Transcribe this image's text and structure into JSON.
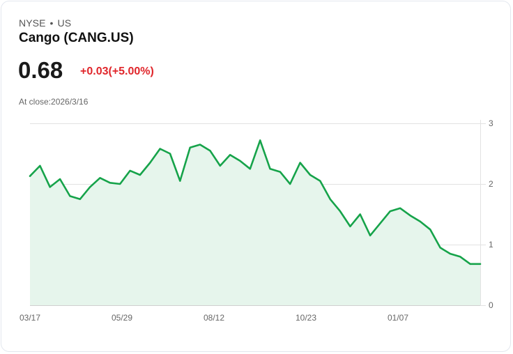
{
  "header": {
    "exchange": "NYSE",
    "separator": "•",
    "region": "US",
    "name": "Cango (CANG.US)",
    "price": "0.68",
    "change": "+0.03(+5.00%)",
    "close_label": "At close:2026/3/16"
  },
  "colors": {
    "line": "#16a34a",
    "fill": "#e6f5ec",
    "change": "#e0262b",
    "grid": "#e2e2e2"
  },
  "chart_data": {
    "type": "area",
    "title": "Cango (CANG.US)",
    "xlabel": "",
    "ylabel": "",
    "ylim": [
      0,
      3
    ],
    "yticks": [
      "0",
      "1",
      "2",
      "3"
    ],
    "xticks": [
      "03/17",
      "05/29",
      "08/12",
      "10/23",
      "01/07"
    ],
    "grid": true,
    "legend": "none",
    "x": [
      "03/17",
      "03/24",
      "04/01",
      "04/09",
      "04/17",
      "04/25",
      "05/03",
      "05/11",
      "05/19",
      "05/29",
      "06/06",
      "06/14",
      "06/22",
      "06/30",
      "07/08",
      "07/16",
      "07/24",
      "08/01",
      "08/12",
      "08/20",
      "08/28",
      "09/05",
      "09/13",
      "09/21",
      "09/29",
      "10/07",
      "10/15",
      "10/23",
      "10/31",
      "11/08",
      "11/16",
      "11/24",
      "12/02",
      "12/10",
      "12/18",
      "12/26",
      "01/07",
      "01/15",
      "01/23",
      "01/31",
      "02/08",
      "02/16",
      "02/24",
      "03/04",
      "03/10",
      "03/16"
    ],
    "values": [
      2.13,
      2.3,
      1.95,
      2.08,
      1.8,
      1.75,
      1.95,
      2.1,
      2.02,
      2.0,
      2.22,
      2.15,
      2.35,
      2.58,
      2.5,
      2.05,
      2.6,
      2.65,
      2.55,
      2.3,
      2.48,
      2.38,
      2.25,
      2.72,
      2.25,
      2.2,
      2.0,
      2.35,
      2.15,
      2.05,
      1.75,
      1.55,
      1.3,
      1.5,
      1.15,
      1.35,
      1.55,
      1.6,
      1.48,
      1.38,
      1.25,
      0.95,
      0.85,
      0.8,
      0.68,
      0.68
    ]
  }
}
